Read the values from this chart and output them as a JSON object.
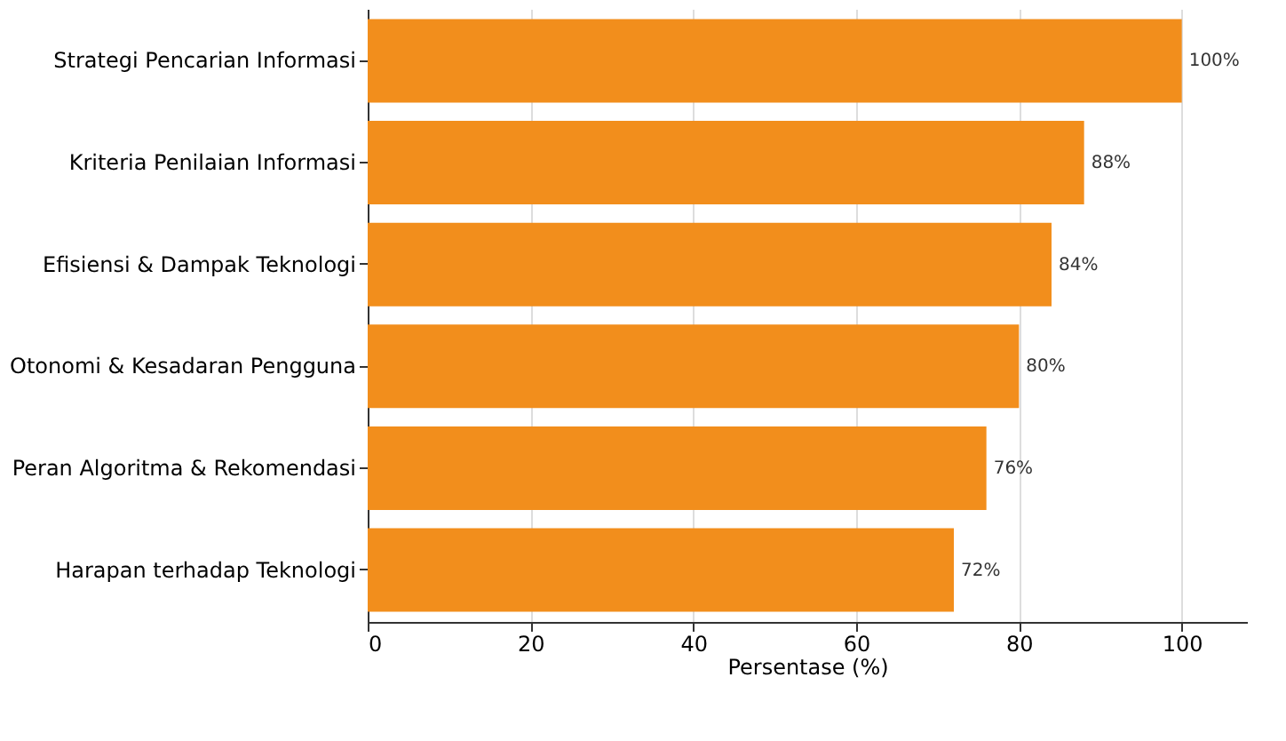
{
  "chart_data": {
    "type": "bar",
    "orientation": "horizontal",
    "xlabel": "Persentase (%)",
    "categories": [
      "Strategi Pencarian Informasi",
      "Kriteria Penilaian Informasi",
      "Efisiensi & Dampak Teknologi",
      "Otonomi & Kesadaran Pengguna",
      "Peran Algoritma & Rekomendasi",
      "Harapan terhadap Teknologi"
    ],
    "values": [
      100,
      88,
      84,
      80,
      76,
      72
    ],
    "value_labels": [
      "100%",
      "88%",
      "84%",
      "80%",
      "76%",
      "72%"
    ],
    "color": "#f28e1c",
    "xlim": [
      0,
      108
    ],
    "xticks": [
      0,
      20,
      40,
      60,
      80,
      100
    ],
    "grid": "x"
  }
}
